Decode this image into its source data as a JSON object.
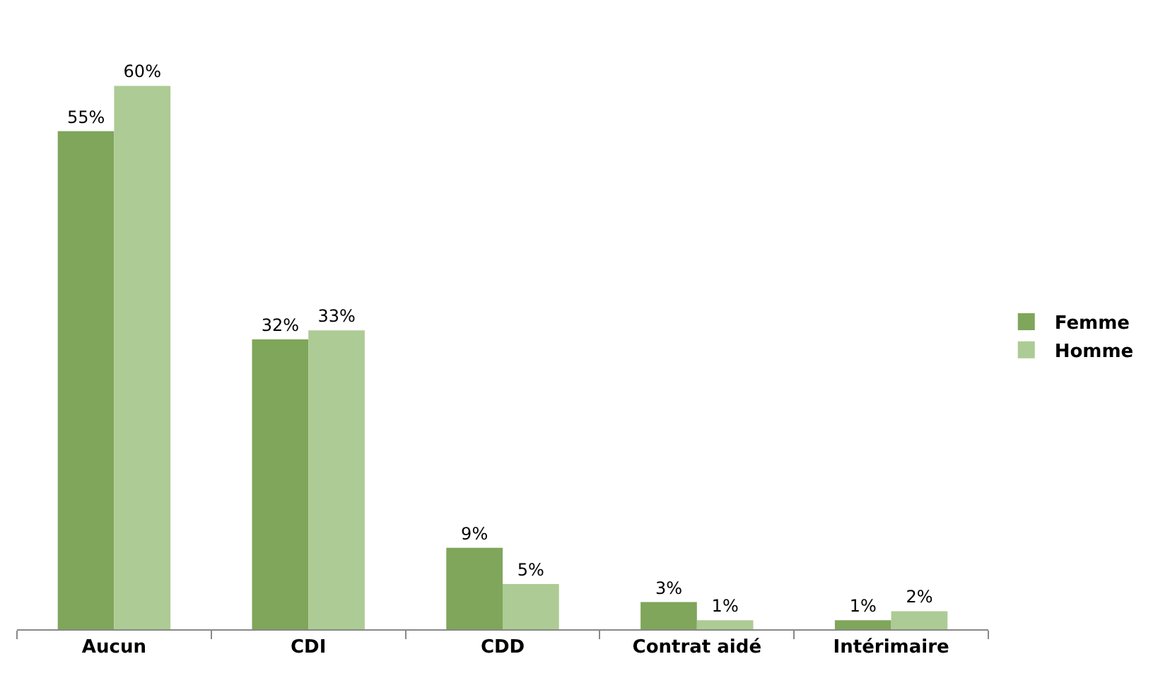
{
  "chart_data": {
    "type": "bar",
    "categories": [
      "Aucun",
      "CDI",
      "CDD",
      "Contrat aidé",
      "Intérimaire"
    ],
    "series": [
      {
        "name": "Femme",
        "color": "#7fa65a",
        "values": [
          55,
          32,
          9,
          3,
          1
        ],
        "value_labels": [
          "55%",
          "32%",
          "9%",
          "3%",
          "1%"
        ]
      },
      {
        "name": "Homme",
        "color": "#adcb94",
        "values": [
          60,
          33,
          5,
          1,
          2
        ],
        "value_labels": [
          "60%",
          "33%",
          "5%",
          "1%",
          "2%"
        ]
      }
    ],
    "legend": "right"
  }
}
